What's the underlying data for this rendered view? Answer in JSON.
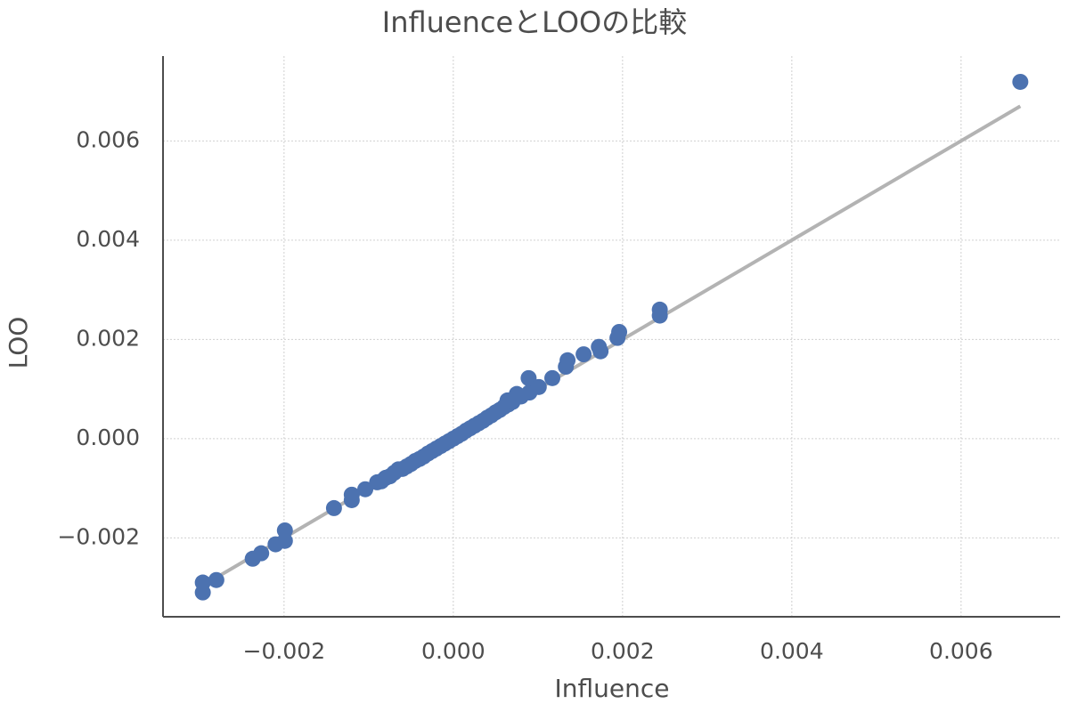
{
  "chart_data": {
    "type": "scatter",
    "title": "InfluenceとLOOの比較",
    "xlabel": "Influence",
    "ylabel": "LOO",
    "xlim": [
      -0.00343,
      0.00717
    ],
    "ylim": [
      -0.00359,
      0.00771
    ],
    "xticks": [
      {
        "value": -0.002,
        "label": "−0.002"
      },
      {
        "value": 0,
        "label": "0.000"
      },
      {
        "value": 0.002,
        "label": "0.002"
      },
      {
        "value": 0.004,
        "label": "0.004"
      },
      {
        "value": 0.006,
        "label": "0.006"
      }
    ],
    "yticks": [
      {
        "value": -0.002,
        "label": "−0.002"
      },
      {
        "value": 0,
        "label": "0.000"
      },
      {
        "value": 0.002,
        "label": "0.002"
      },
      {
        "value": 0.004,
        "label": "0.004"
      },
      {
        "value": 0.006,
        "label": "0.006"
      }
    ],
    "grid": true,
    "reference_line": {
      "x": [
        -0.0028,
        0.0067
      ],
      "y": [
        -0.0028,
        0.0067
      ],
      "color": "#b3b3b3"
    },
    "series": [
      {
        "color": "#4c72b0",
        "x": [
          0.0067,
          -0.00296,
          -0.00296,
          -0.0028,
          -0.00237,
          -0.00227,
          -0.0021,
          -0.00199,
          -0.00199,
          -0.00141,
          -0.0012,
          -0.0012,
          -0.00104,
          -0.0009,
          -0.00085,
          -0.0008,
          -0.00075,
          -0.0007,
          -0.00065,
          -0.0006,
          -0.00055,
          -0.0005,
          -0.00045,
          -0.0004,
          -0.00035,
          -0.0003,
          -0.00025,
          -0.0002,
          -0.00015,
          -0.0001,
          -5e-05,
          0,
          5e-05,
          0.0001,
          0.00015,
          0.0002,
          0.00025,
          0.0003,
          0.00035,
          0.0004,
          0.00045,
          0.0005,
          0.00055,
          0.0006,
          0.00065,
          0.0007,
          0.0008,
          0.0009,
          0.00064,
          0.00075,
          0.00089,
          0.00101,
          0.00117,
          0.00133,
          0.00135,
          0.00154,
          0.00172,
          0.00174,
          0.00194,
          0.00196,
          0.00244,
          0.00244
        ],
        "y": [
          0.00719,
          -0.0029,
          -0.0031,
          -0.00285,
          -0.00242,
          -0.00231,
          -0.00213,
          -0.00185,
          -0.00206,
          -0.0014,
          -0.00113,
          -0.00124,
          -0.00102,
          -0.00088,
          -0.00086,
          -0.00079,
          -0.00076,
          -0.00069,
          -0.00062,
          -0.00061,
          -0.00056,
          -0.00051,
          -0.00045,
          -0.00041,
          -0.00036,
          -0.0003,
          -0.00025,
          -0.0002,
          -0.00015,
          -0.0001,
          -5e-05,
          0,
          5e-05,
          0.0001,
          0.00016,
          0.00021,
          0.00026,
          0.00031,
          0.00036,
          0.00042,
          0.00047,
          0.00053,
          0.00058,
          0.00064,
          0.00069,
          0.00074,
          0.00085,
          0.00093,
          0.00077,
          0.0009,
          0.00122,
          0.00104,
          0.00122,
          0.00145,
          0.00158,
          0.0017,
          0.00185,
          0.00176,
          0.00203,
          0.00215,
          0.0026,
          0.00248
        ]
      }
    ]
  }
}
